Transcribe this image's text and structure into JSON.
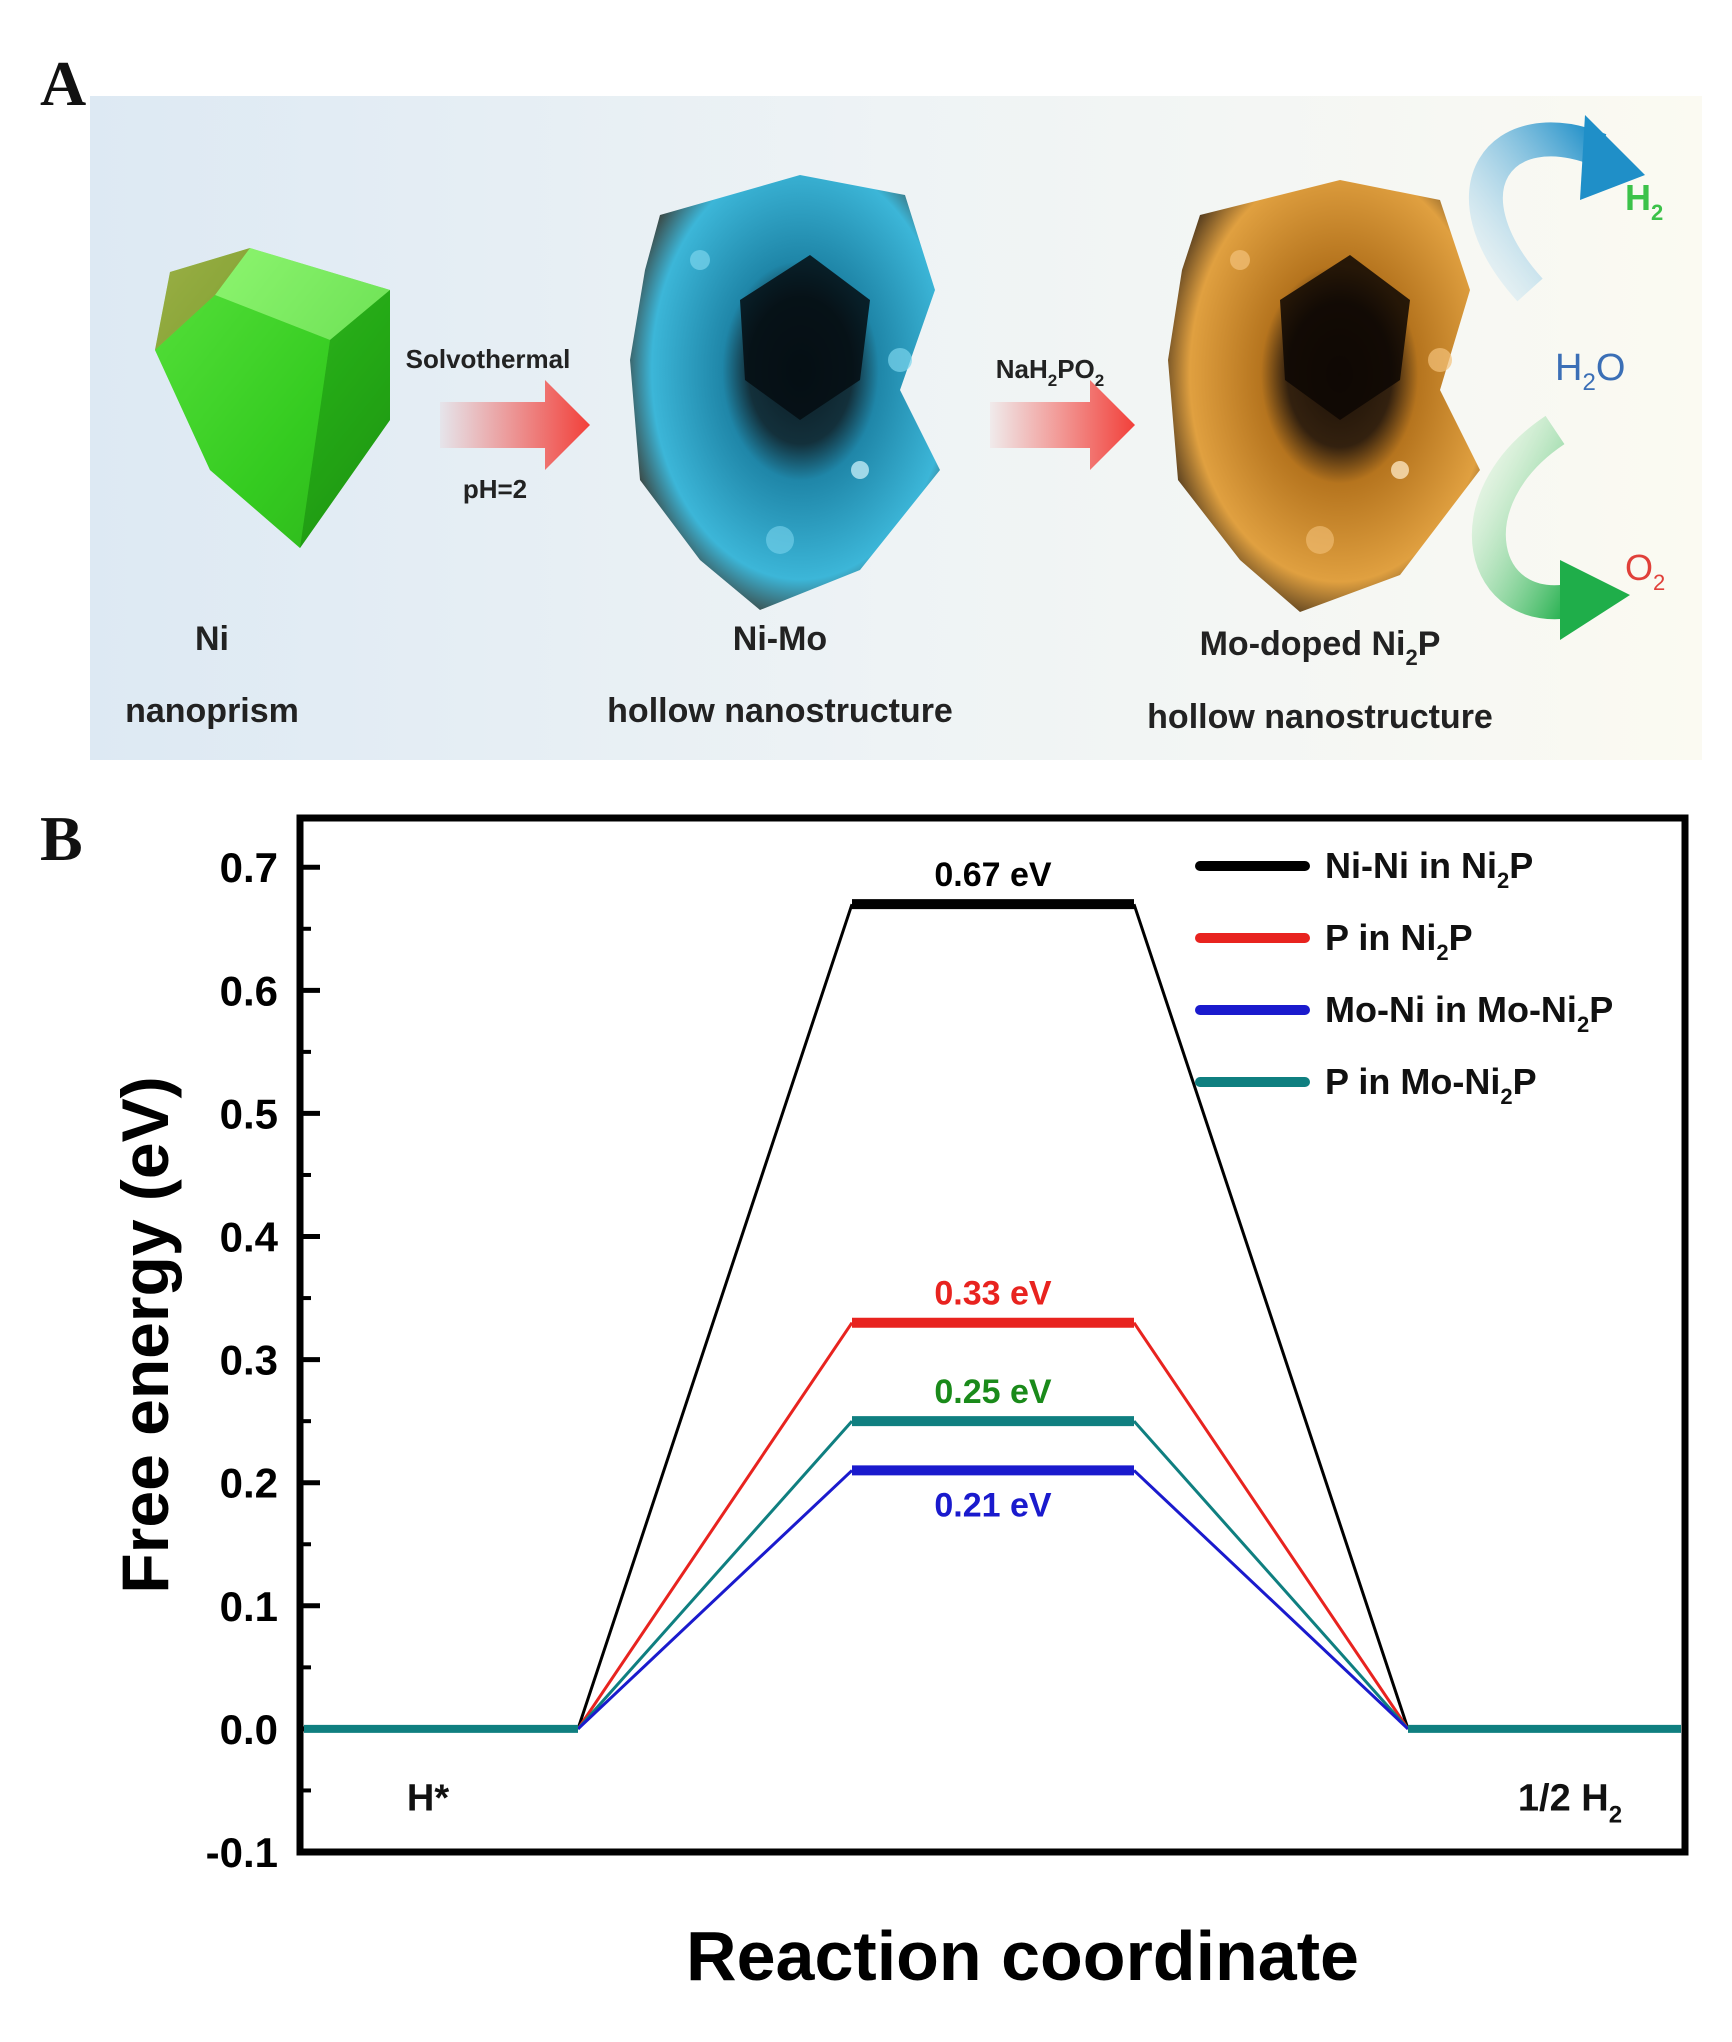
{
  "panel_a": {
    "letter": "A",
    "ni": {
      "name": "Ni",
      "desc": "nanoprism"
    },
    "step1": {
      "top": "Solvothermal",
      "bottom": "pH=2"
    },
    "nimo": {
      "name": "Ni-Mo",
      "desc": "hollow nanostructure"
    },
    "step2": {
      "top_main": "NaH",
      "top_sub1": "2",
      "top_mid": "PO",
      "top_sub2": "2"
    },
    "product": {
      "name_main": "Mo-doped Ni",
      "name_sub": "2",
      "name_end": "P",
      "desc": "hollow nanostructure"
    },
    "h2": {
      "main": "H",
      "sub": "2"
    },
    "h2o": {
      "main": "H",
      "sub": "2",
      "end": "O"
    },
    "o2": {
      "main": "O",
      "sub": "2"
    },
    "colors": {
      "ni": "#3ed62a",
      "nimo": "#2aa7c9",
      "product": "#c8862a",
      "h2": "#3cc24a",
      "h2o": "#3b6fb6",
      "o2": "#e0403a",
      "arrow": "#f2403a"
    }
  },
  "chart_data": {
    "type": "line",
    "panel_letter": "B",
    "ylabel": "Free energy (eV)",
    "xlabel": "Reaction coordinate",
    "ylim": [
      -0.1,
      0.74
    ],
    "yticks": [
      "-0.1",
      "0.0",
      "0.1",
      "0.2",
      "0.3",
      "0.4",
      "0.5",
      "0.6",
      "0.7"
    ],
    "ytick_values": [
      -0.1,
      0.0,
      0.1,
      0.2,
      0.3,
      0.4,
      0.5,
      0.6,
      0.7
    ],
    "states": [
      "H*",
      "",
      "1/2 H2"
    ],
    "end_labels": {
      "left": "H*",
      "right_main": "1/2 H",
      "right_sub": "2"
    },
    "grid": false,
    "legend_position": "top-right",
    "series": [
      {
        "name_parts": [
          "Ni-Ni in Ni",
          "2",
          "P"
        ],
        "color": "#000000",
        "values": [
          0.0,
          0.67,
          0.0
        ],
        "label": "0.67 eV"
      },
      {
        "name_parts": [
          "P in Ni",
          "2",
          "P"
        ],
        "color": "#e8231f",
        "values": [
          0.0,
          0.33,
          0.0
        ],
        "label": "0.33 eV"
      },
      {
        "name_parts": [
          "Mo-Ni in Mo-Ni",
          "2",
          "P"
        ],
        "color": "#1a1acd",
        "values": [
          0.0,
          0.21,
          0.0
        ],
        "label": "0.21 eV"
      },
      {
        "name_parts": [
          "P in Mo-Ni",
          "2",
          "P"
        ],
        "color": "#0f7f80",
        "values": [
          0.0,
          0.25,
          0.0
        ],
        "label": "0.25 eV",
        "label_color": "#1a8a1a"
      }
    ]
  }
}
